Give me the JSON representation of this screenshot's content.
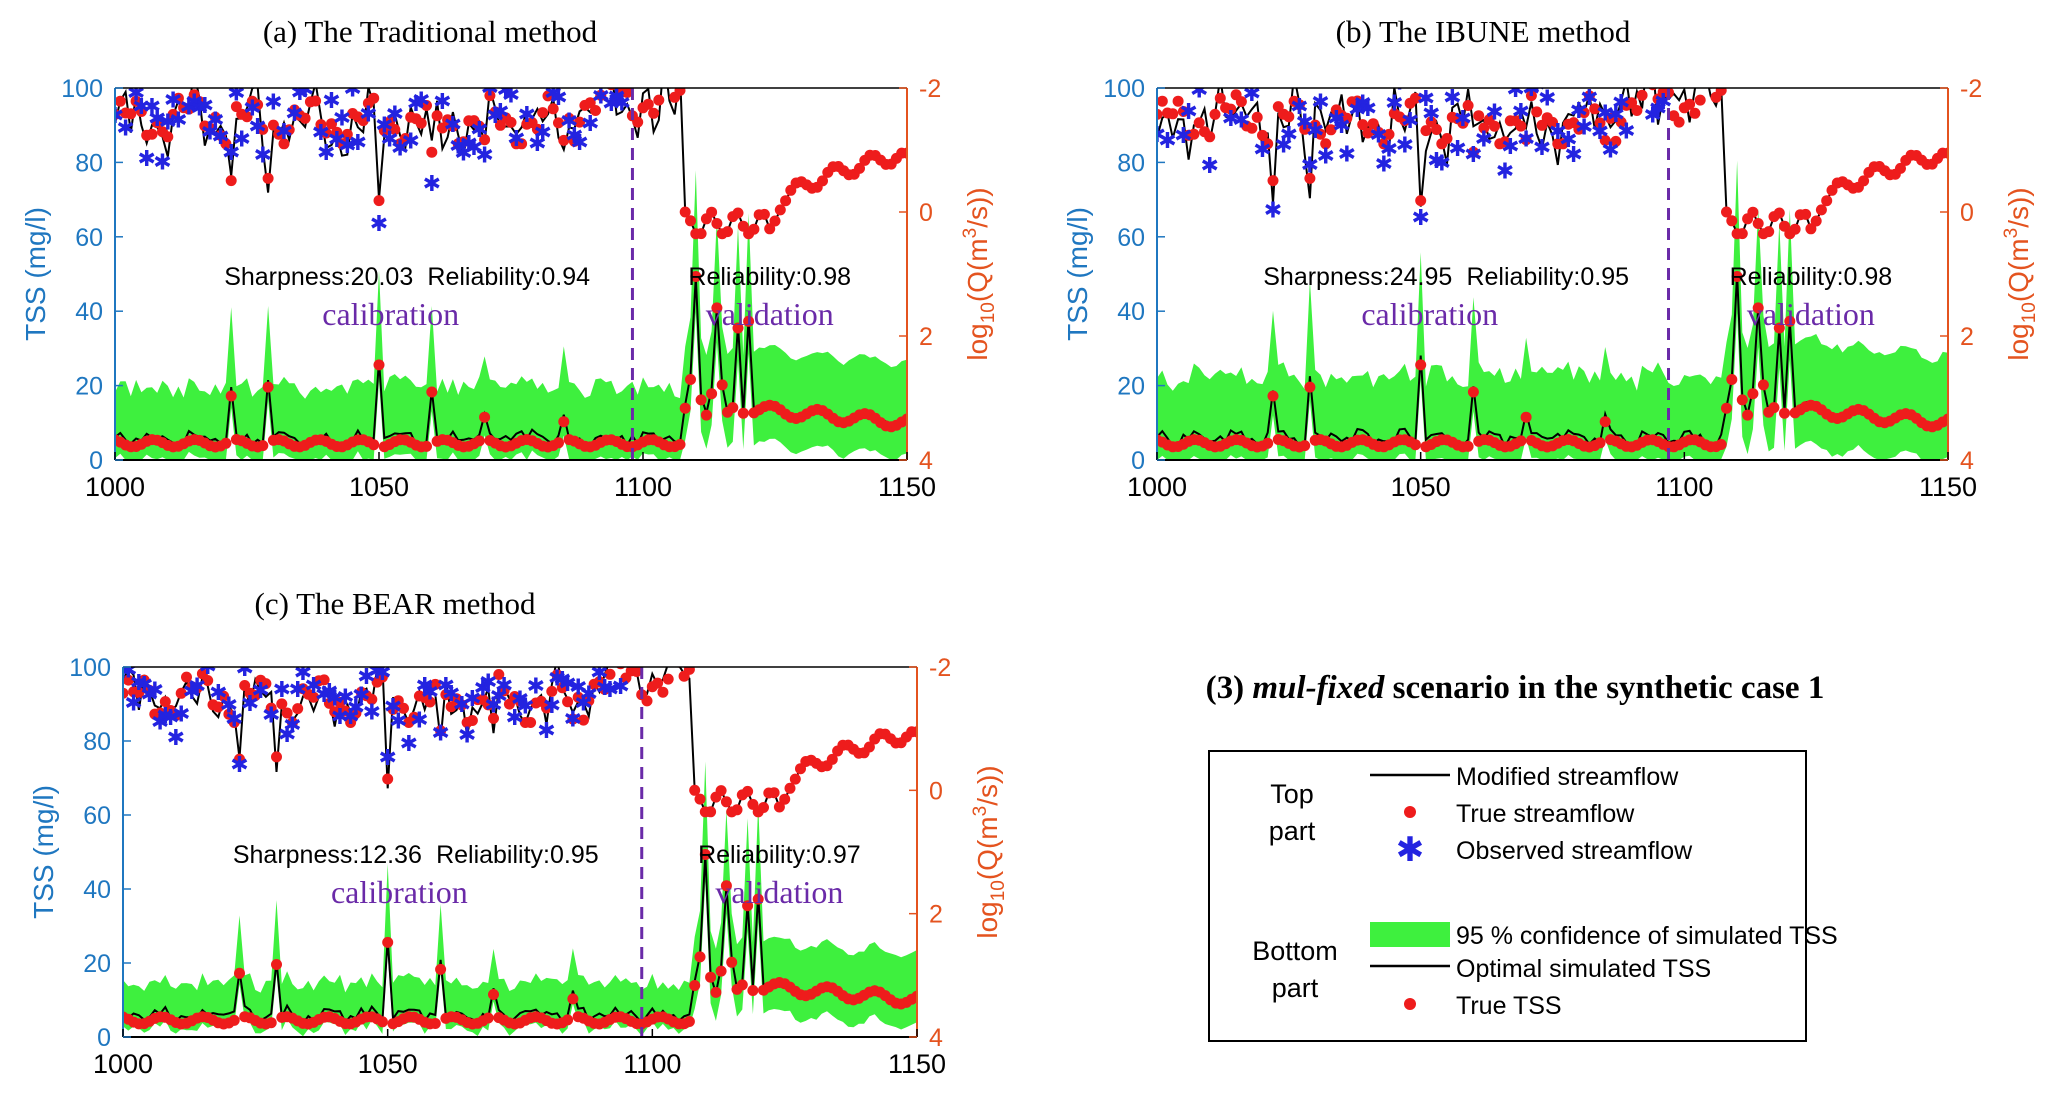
{
  "figure_title": {
    "prefix": "(3)",
    "emphasis": "mul-fixed",
    "suffix": "scenario in the synthetic case 1"
  },
  "legend": {
    "top_group_line1": "Top",
    "top_group_line2": "part",
    "bottom_group_line1": "Bottom",
    "bottom_group_line2": "part",
    "items": {
      "modified_streamflow": "Modified streamflow",
      "true_streamflow": "True streamflow",
      "observed_streamflow": "Observed streamflow",
      "confidence_band": "95 % confidence of simulated TSS",
      "optimal_tss": "Optimal simulated TSS",
      "true_tss": "True TSS"
    }
  },
  "colors": {
    "left_axis": "#1f77c0",
    "right_axis": "#e4531f",
    "band": "#3ef03e",
    "true_points": "#ee1c1c",
    "observed_stars": "#2323e0",
    "line": "#000000",
    "divider": "#6a2aa8",
    "phase_text": "#6a2aa8"
  },
  "shared": {
    "left_label": "TSS (mg/l)",
    "right_label_prefix": "log",
    "right_label_sub": "10",
    "right_label_mid": "(Q(m",
    "right_label_sup": "3",
    "right_label_suffix": "/s))",
    "calibration_label": "calibration",
    "validation_label": "validation"
  },
  "chart_data": [
    {
      "type": "line",
      "title": "(a) The Traditional method",
      "xlim": [
        1000,
        1150
      ],
      "x_ticks": [
        "1000",
        "1050",
        "1100",
        "1150"
      ],
      "ylim_left": [
        0,
        100
      ],
      "y_ticks_left": [
        "0",
        "20",
        "40",
        "60",
        "80",
        "100"
      ],
      "ylim_right_reversed": [
        -2,
        4
      ],
      "y_ticks_right": [
        "-2",
        "0",
        "2",
        "4"
      ],
      "divider_x": 1098,
      "sharpness_text": "Sharpness:20.03",
      "reliability_cal_text": "Reliability:0.94",
      "reliability_val_text": "Reliability:0.98",
      "band_width": 16,
      "spike_scale": 1.0,
      "obs_scatter": 1.0
    },
    {
      "type": "line",
      "title": "(b) The IBUNE method",
      "xlim": [
        1000,
        1150
      ],
      "x_ticks": [
        "1000",
        "1050",
        "1100",
        "1150"
      ],
      "ylim_left": [
        0,
        100
      ],
      "y_ticks_left": [
        "0",
        "20",
        "40",
        "60",
        "80",
        "100"
      ],
      "ylim_right_reversed": [
        -2,
        4
      ],
      "y_ticks_right": [
        "-2",
        "0",
        "2",
        "4"
      ],
      "divider_x": 1097,
      "sharpness_text": "Sharpness:24.95",
      "reliability_cal_text": "Reliability:0.95",
      "reliability_val_text": "Reliability:0.98",
      "band_width": 19,
      "spike_scale": 1.0,
      "obs_scatter": 1.2
    },
    {
      "type": "line",
      "title": "(c) The BEAR method",
      "xlim": [
        1000,
        1150
      ],
      "x_ticks": [
        "1000",
        "1050",
        "1100",
        "1150"
      ],
      "ylim_left": [
        0,
        100
      ],
      "y_ticks_left": [
        "0",
        "20",
        "40",
        "60",
        "80",
        "100"
      ],
      "ylim_right_reversed": [
        -2,
        4
      ],
      "y_ticks_right": [
        "-2",
        "0",
        "2",
        "4"
      ],
      "divider_x": 1098,
      "sharpness_text": "Sharpness:12.36",
      "reliability_cal_text": "Reliability:0.95",
      "reliability_val_text": "Reliability:0.97",
      "band_width": 10,
      "spike_scale": 1.0,
      "obs_scatter": 0.8
    }
  ]
}
